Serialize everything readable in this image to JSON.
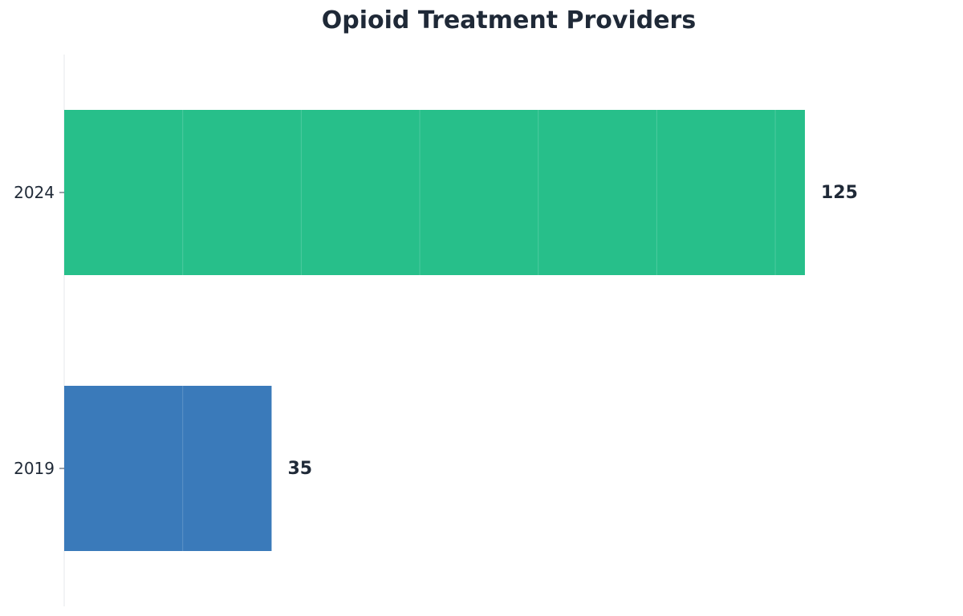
{
  "chart_data": {
    "type": "bar",
    "orientation": "horizontal",
    "title": "Opioid Treatment Providers",
    "xlabel": "",
    "ylabel": "",
    "categories": [
      "2024",
      "2019"
    ],
    "values": [
      125,
      35
    ],
    "colors": [
      "#27bf8a",
      "#3a7aba"
    ],
    "xlim": [
      0,
      135
    ],
    "grid": true,
    "legend": "none",
    "data_labels": [
      "125",
      "35"
    ]
  }
}
